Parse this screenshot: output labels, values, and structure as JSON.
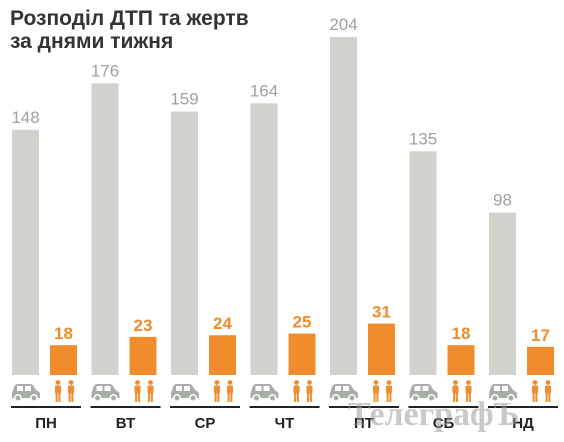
{
  "title": [
    "Розподіл ДТП та жертв",
    "за днями тижня"
  ],
  "watermark": "ТелеграфЪ",
  "colors": {
    "accidents": "#cfd3cc",
    "victims": "#f08c2c",
    "accident_label": "#a0a0a0",
    "car_icon": "#a8ada8",
    "person_icon": "#f08c2c",
    "axis": "#222222"
  },
  "icons": {
    "accident": "car-icon",
    "victim": "people-icon"
  },
  "chart_data": {
    "type": "bar",
    "title": "Розподіл ДТП та жертв за днями тижня",
    "categories": [
      "ПН",
      "ВТ",
      "СР",
      "ЧТ",
      "ПТ",
      "СБ",
      "НД"
    ],
    "series": [
      {
        "values": [
          148,
          176,
          159,
          164,
          204,
          135,
          98
        ]
      },
      {
        "values": [
          18,
          23,
          24,
          25,
          31,
          18,
          17
        ]
      }
    ],
    "ylim": [
      0,
      204
    ],
    "grid": false,
    "legend": "none"
  }
}
